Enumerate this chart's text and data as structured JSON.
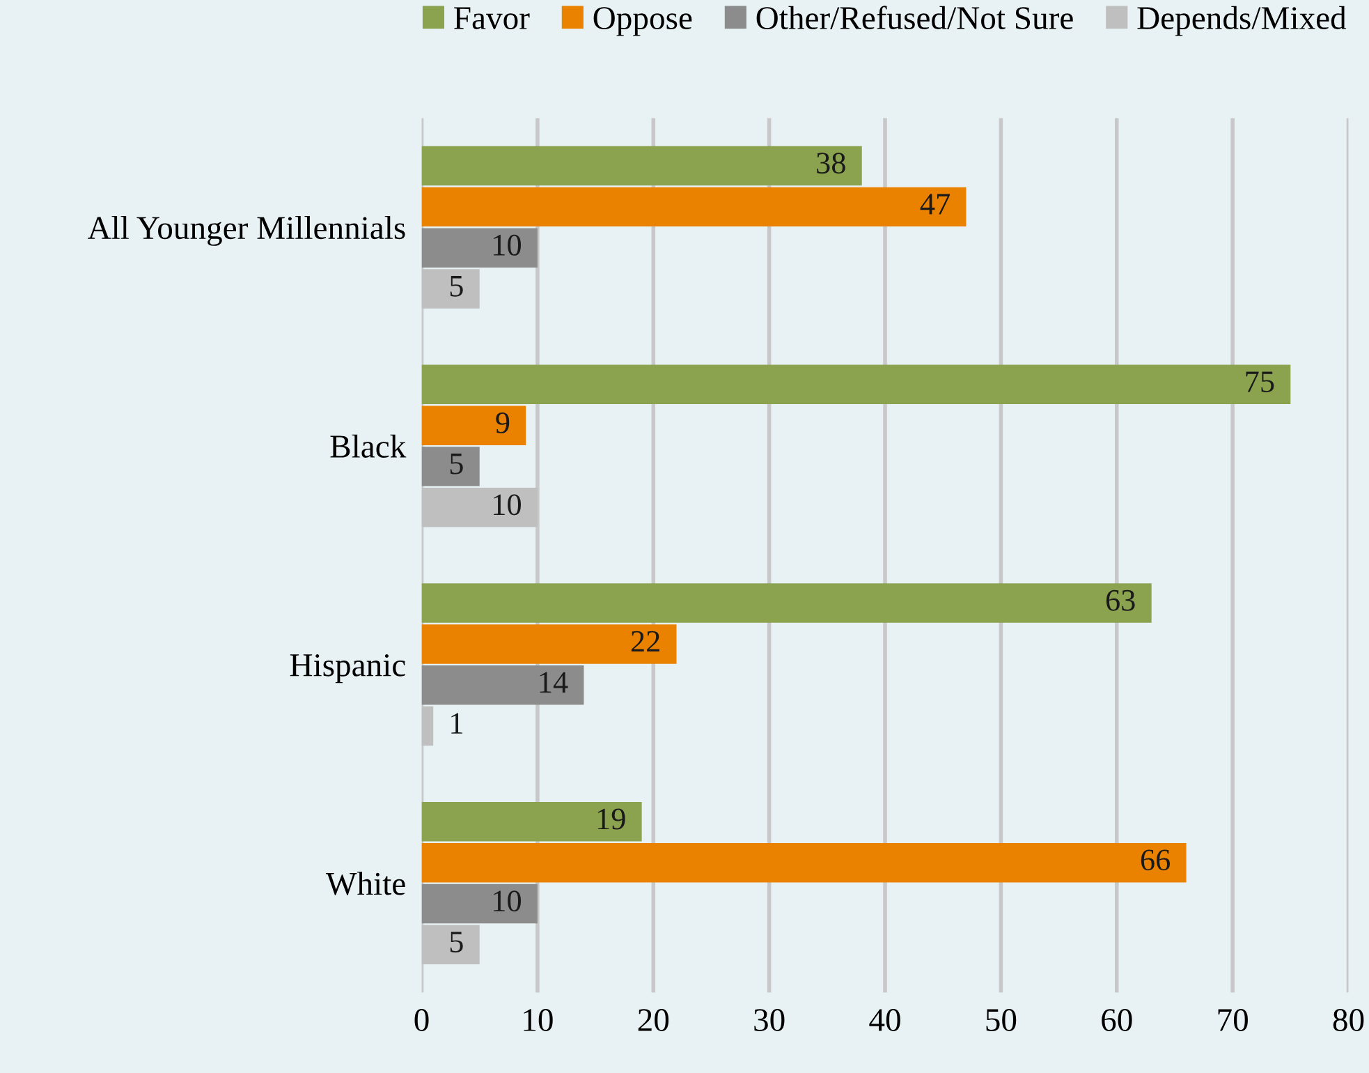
{
  "chart_data": {
    "type": "bar",
    "orientation": "horizontal",
    "categories": [
      "All Younger Millennials",
      "Black",
      "Hispanic",
      "White"
    ],
    "series": [
      {
        "name": "Favor",
        "color": "#8ba34f",
        "values": [
          38,
          75,
          63,
          19
        ]
      },
      {
        "name": "Oppose",
        "color": "#ea8200",
        "values": [
          47,
          9,
          22,
          66
        ]
      },
      {
        "name": "Other/Refused/Not Sure",
        "color": "#8c8c8c",
        "values": [
          10,
          5,
          14,
          10
        ]
      },
      {
        "name": "Depends/Mixed",
        "color": "#bfbfbf",
        "values": [
          5,
          10,
          1,
          5
        ]
      }
    ],
    "xlim": [
      0,
      80
    ],
    "xticks": [
      0,
      10,
      20,
      30,
      40,
      50,
      60,
      70,
      80
    ],
    "grid": "x",
    "legend": "top",
    "data_labels": true
  }
}
